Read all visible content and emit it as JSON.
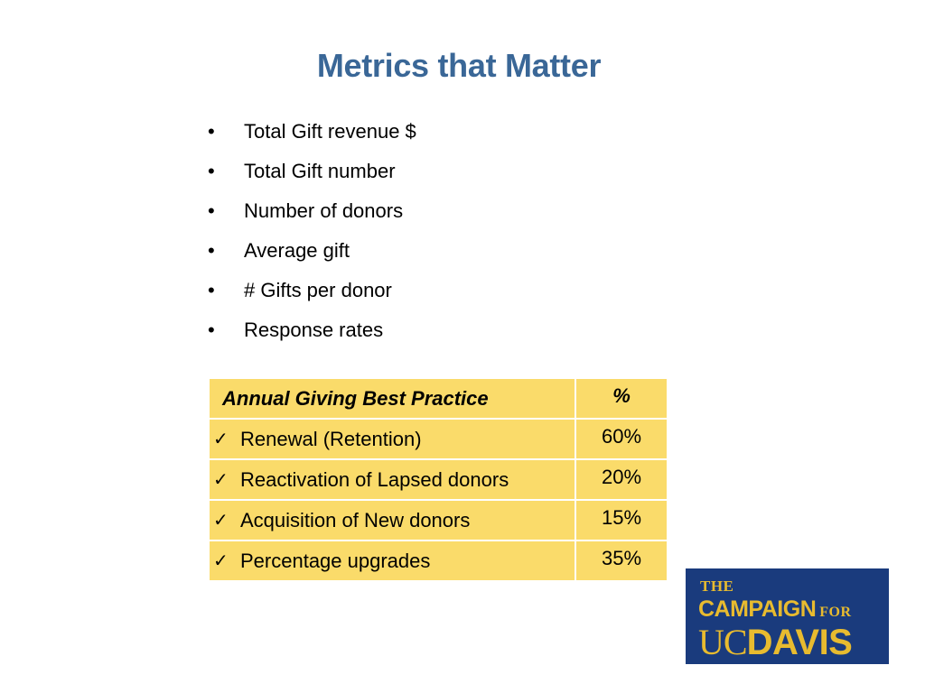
{
  "slide": {
    "title": "Metrics that Matter",
    "bullets": [
      "Total Gift revenue $",
      "Total Gift number",
      "Number of donors",
      "Average gift",
      "# Gifts per donor",
      "Response rates"
    ],
    "bullet_glyph": "•"
  },
  "table": {
    "header": {
      "label": "Annual Giving Best Practice",
      "pct": "%"
    },
    "check_glyph": "✓",
    "rows": [
      {
        "label": "Renewal (Retention)",
        "pct": "60%"
      },
      {
        "label": "Reactivation of Lapsed donors",
        "pct": "20%"
      },
      {
        "label": "Acquisition of New donors",
        "pct": "15%"
      },
      {
        "label": "Percentage upgrades",
        "pct": "35%"
      }
    ],
    "fill_color": "#fadb6a"
  },
  "logo": {
    "line1": "THE",
    "line2": "CAMPAIGN",
    "line2_suffix": "FOR",
    "line3_a": "UC",
    "line3_b": "DAVIS",
    "background": "#1a3b7d",
    "foreground": "#e8bb2f"
  },
  "colors": {
    "title": "#3a6797"
  }
}
